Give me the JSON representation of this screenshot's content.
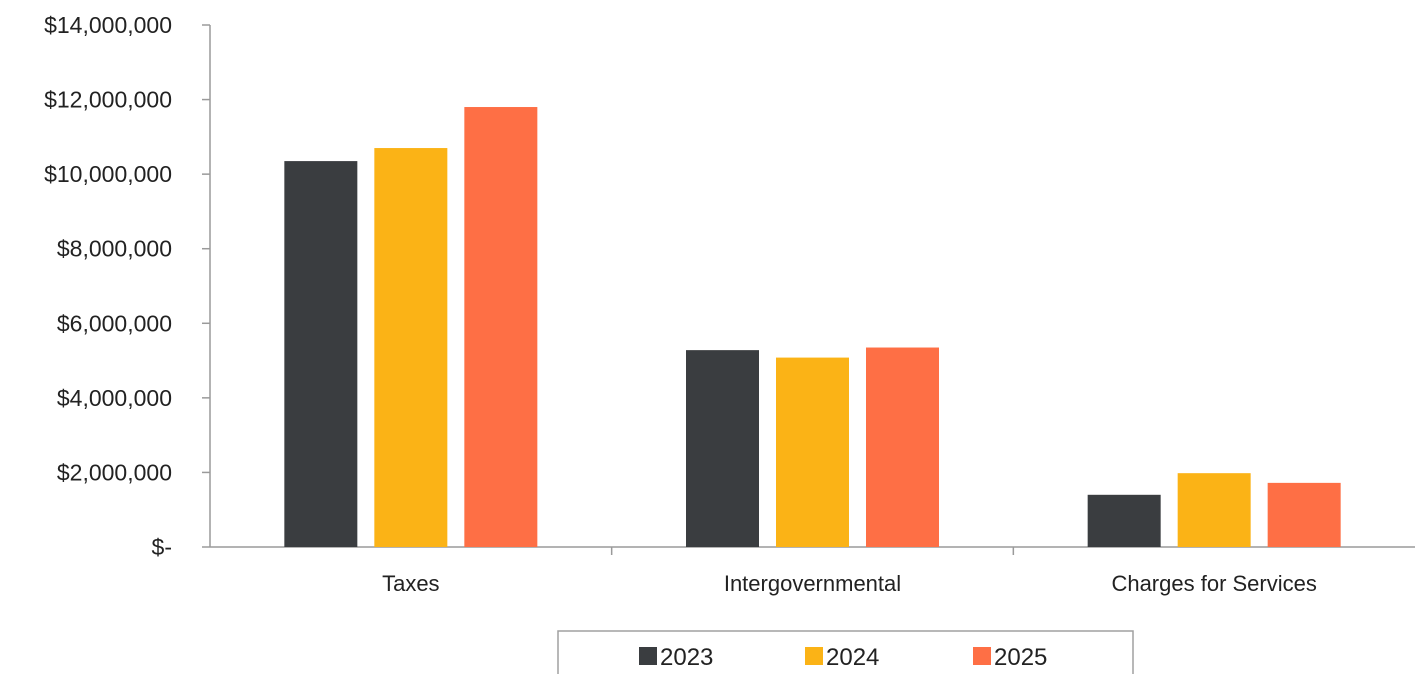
{
  "chart_data": {
    "type": "bar",
    "categories": [
      "Taxes",
      "Intergovernmental",
      "Charges for Services"
    ],
    "series": [
      {
        "name": "2023",
        "color": "#3a3d40",
        "values": [
          10350000,
          5280000,
          1400000
        ]
      },
      {
        "name": "2024",
        "color": "#fbb316",
        "values": [
          10700000,
          5080000,
          1980000
        ]
      },
      {
        "name": "2025",
        "color": "#fe6f45",
        "values": [
          11800000,
          5350000,
          1720000
        ]
      }
    ],
    "title": "",
    "xlabel": "",
    "ylabel": "",
    "ylim": [
      0,
      14000000
    ],
    "yticks": [
      0,
      2000000,
      4000000,
      6000000,
      8000000,
      10000000,
      12000000,
      14000000
    ],
    "ytick_labels": [
      "$-",
      "$2,000,000",
      "$4,000,000",
      "$6,000,000",
      "$8,000,000",
      "$10,000,000",
      "$12,000,000",
      "$14,000,000"
    ],
    "grid": false,
    "legend_position": "bottom-center"
  }
}
